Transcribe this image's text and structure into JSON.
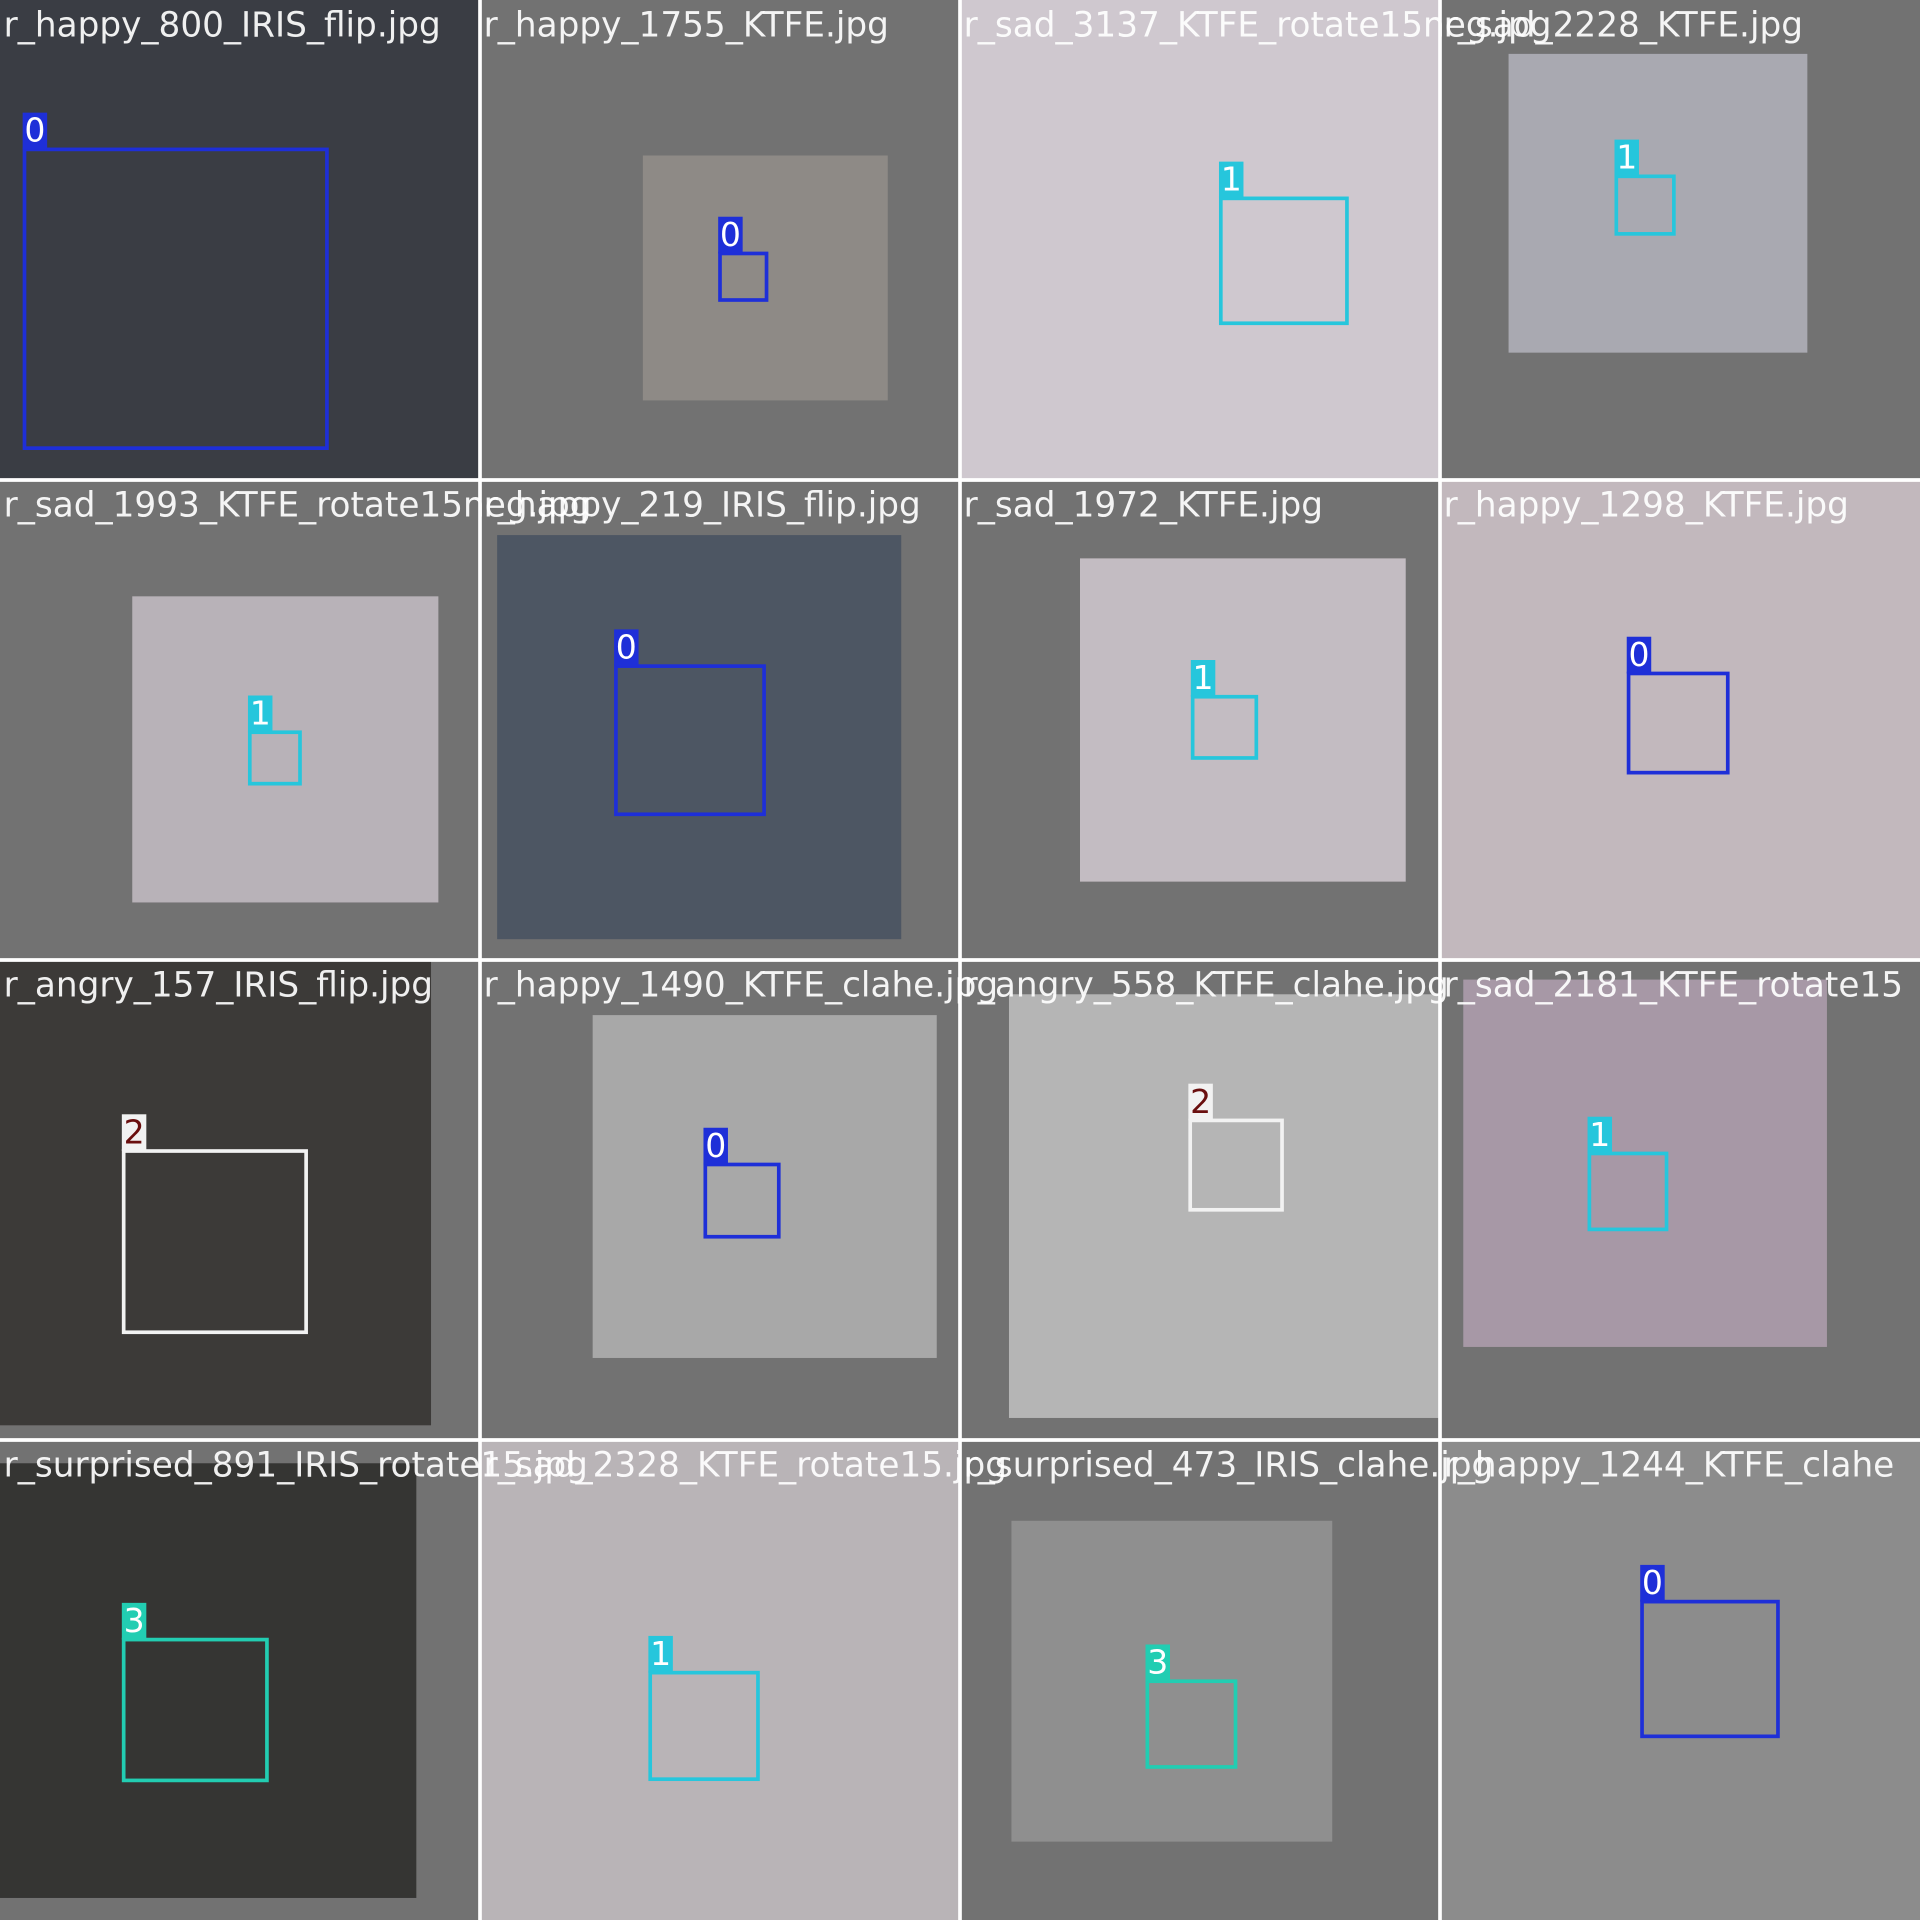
{
  "tiles": [
    {
      "filename": "r_happy_800_IRIS_flip.jpg",
      "boxes": [
        {
          "label": "0"
        }
      ]
    },
    {
      "filename": "r_happy_1755_KTFE.jpg",
      "boxes": [
        {
          "label": "0"
        }
      ]
    },
    {
      "filename": "r_sad_3137_KTFE_rotate15neg.jpg",
      "boxes": [
        {
          "label": "1"
        }
      ]
    },
    {
      "filename": "r_sad_2228_KTFE.jpg",
      "boxes": [
        {
          "label": "1"
        }
      ]
    },
    {
      "filename": "r_sad_1993_KTFE_rotate15neg.jpg",
      "boxes": [
        {
          "label": "1"
        }
      ]
    },
    {
      "filename": "r_happy_219_IRIS_flip.jpg",
      "boxes": [
        {
          "label": "0"
        }
      ]
    },
    {
      "filename": "r_sad_1972_KTFE.jpg",
      "boxes": [
        {
          "label": "1"
        }
      ]
    },
    {
      "filename": "r_happy_1298_KTFE.jpg",
      "boxes": [
        {
          "label": "0"
        }
      ]
    },
    {
      "filename": "r_angry_157_IRIS_flip.jpg",
      "boxes": [
        {
          "label": "2"
        }
      ]
    },
    {
      "filename": "r_happy_1490_KTFE_clahe.jpg",
      "boxes": [
        {
          "label": "0"
        }
      ]
    },
    {
      "filename": "r_angry_558_KTFE_clahe.jpg",
      "boxes": [
        {
          "label": "2"
        }
      ]
    },
    {
      "filename": "r_sad_2181_KTFE_rotate15",
      "boxes": [
        {
          "label": "1"
        }
      ]
    },
    {
      "filename": "r_surprised_891_IRIS_rotate15.jpg",
      "boxes": [
        {
          "label": "3"
        }
      ]
    },
    {
      "filename": "r_sad_2328_KTFE_rotate15.jpg",
      "boxes": [
        {
          "label": "1"
        }
      ]
    },
    {
      "filename": "r_surprised_473_IRIS_clahe.jpg",
      "boxes": [
        {
          "label": "3"
        }
      ]
    },
    {
      "filename": "r_happy_1244_KTFE_clahe",
      "boxes": [
        {
          "label": "0"
        }
      ]
    }
  ]
}
